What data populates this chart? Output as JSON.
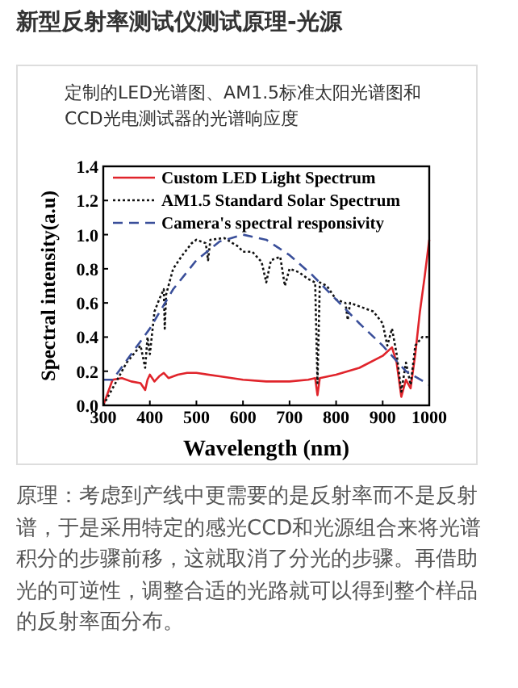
{
  "chart_data": {
    "type": "line",
    "title": "新型反射率测试仪测试原理-光源",
    "subtitle": "定制的LED光谱图、AM1.5标准太阳光谱图和CCD光电测试器的光谱响应度",
    "annotations": [
      "原理：考虑到产线中更需要的是反射率而不是反射谱，于是采用特定的感光CCD和光源组合来将光谱积分的步骤前移，这就取消了分光的步骤。再借助光的可逆性，调整合适的光路就可以得到整个样品的反射率面分布。"
    ],
    "xlabel": "Wavelength (nm)",
    "ylabel": "Spectral intensity(a.u)",
    "xlim": [
      300,
      1000
    ],
    "ylim": [
      0,
      1.4
    ],
    "xticks": [
      300,
      400,
      500,
      600,
      700,
      800,
      900,
      1000
    ],
    "yticks": [
      {
        "value": 0,
        "label": "0.0"
      },
      {
        "value": 0.2,
        "label": "0.2"
      },
      {
        "value": 0.4,
        "label": "0.4"
      },
      {
        "value": 0.6,
        "label": "0.6"
      },
      {
        "value": 0.8,
        "label": "0.8"
      },
      {
        "value": 1,
        "label": "1.0"
      },
      {
        "value": 1.2,
        "label": "1.2"
      },
      {
        "value": 1.4,
        "label": "1.4"
      }
    ],
    "grid": false,
    "legend": "top left",
    "marker": "none",
    "series": [
      {
        "name": "Custom LED Light Spectrum",
        "color": "#e0242b",
        "line_style": "solid",
        "x": [
          300,
          320,
          340,
          360,
          380,
          390,
          395,
          400,
          410,
          420,
          430,
          440,
          460,
          480,
          500,
          550,
          600,
          650,
          700,
          740,
          755,
          760,
          765,
          800,
          850,
          900,
          920,
          930,
          940,
          950,
          960,
          970,
          980,
          990,
          1000
        ],
        "values": [
          0,
          0.15,
          0.16,
          0.14,
          0.13,
          0.09,
          0.15,
          0.18,
          0.14,
          0.17,
          0.19,
          0.16,
          0.18,
          0.19,
          0.19,
          0.17,
          0.15,
          0.14,
          0.14,
          0.15,
          0.16,
          0.06,
          0.16,
          0.18,
          0.22,
          0.29,
          0.34,
          0.25,
          0.05,
          0.15,
          0.1,
          0.3,
          0.55,
          0.75,
          0.97
        ]
      },
      {
        "name": "AM1.5 Standard Solar Spectrum",
        "color": "#111111",
        "line_style": "dotted",
        "x": [
          300,
          320,
          350,
          380,
          390,
          395,
          400,
          410,
          420,
          430,
          432,
          435,
          450,
          470,
          490,
          500,
          520,
          525,
          530,
          560,
          590,
          600,
          620,
          640,
          650,
          660,
          680,
          690,
          700,
          720,
          740,
          755,
          760,
          765,
          780,
          800,
          820,
          825,
          830,
          850,
          880,
          900,
          910,
          920,
          930,
          940,
          950,
          960,
          970,
          985,
          1000
        ],
        "values": [
          0,
          0.1,
          0.25,
          0.35,
          0.22,
          0.4,
          0.3,
          0.55,
          0.62,
          0.68,
          0.45,
          0.65,
          0.8,
          0.88,
          0.95,
          0.97,
          0.95,
          0.85,
          0.97,
          0.98,
          0.93,
          0.9,
          0.9,
          0.84,
          0.72,
          0.85,
          0.87,
          0.7,
          0.8,
          0.78,
          0.74,
          0.72,
          0.13,
          0.72,
          0.7,
          0.62,
          0.6,
          0.5,
          0.6,
          0.58,
          0.55,
          0.48,
          0.35,
          0.45,
          0.3,
          0.08,
          0.25,
          0.12,
          0.35,
          0.4,
          0.4
        ]
      },
      {
        "name": "Camera's spectral responsivity",
        "color": "#3a4f9a",
        "line_style": "dashed",
        "x": [
          300,
          320,
          400,
          450,
          500,
          550,
          600,
          650,
          700,
          750,
          800,
          850,
          900,
          950,
          1000
        ],
        "values": [
          0.15,
          0.15,
          0.45,
          0.68,
          0.85,
          0.96,
          1.0,
          0.97,
          0.88,
          0.76,
          0.62,
          0.48,
          0.35,
          0.2,
          0.12
        ]
      }
    ]
  }
}
